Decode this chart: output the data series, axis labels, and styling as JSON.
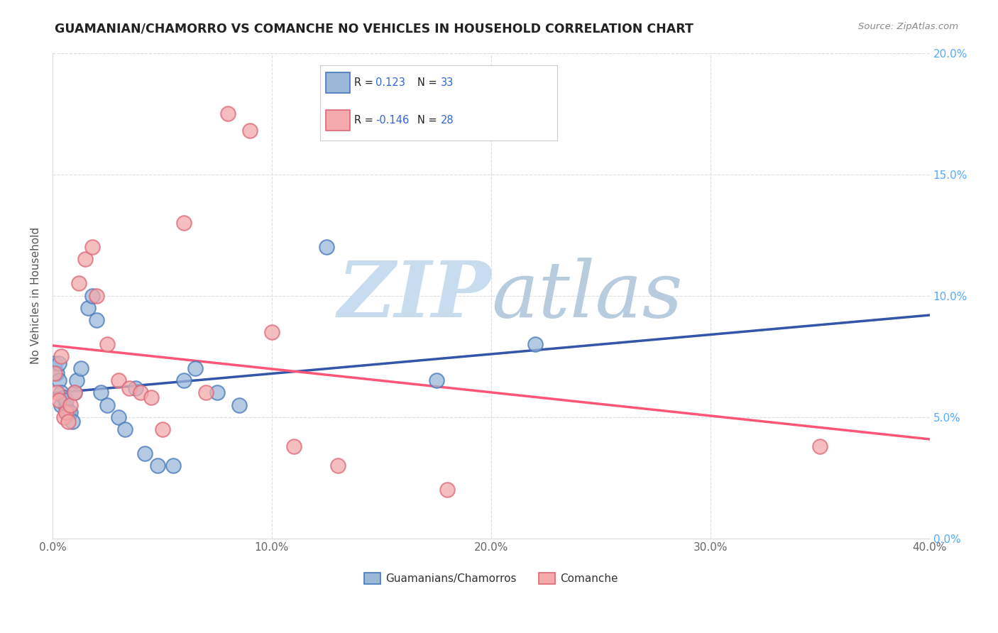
{
  "title": "GUAMANIAN/CHAMORRO VS COMANCHE NO VEHICLES IN HOUSEHOLD CORRELATION CHART",
  "source": "Source: ZipAtlas.com",
  "ylabel": "No Vehicles in Household",
  "xlim": [
    0.0,
    0.4
  ],
  "ylim": [
    0.0,
    0.2
  ],
  "xtick_vals": [
    0.0,
    0.1,
    0.2,
    0.3,
    0.4
  ],
  "ytick_vals": [
    0.0,
    0.05,
    0.1,
    0.15,
    0.2
  ],
  "legend_label1": "Guamanians/Chamorros",
  "legend_label2": "Comanche",
  "r1": 0.123,
  "n1": 33,
  "r2": -0.146,
  "n2": 28,
  "blue_face_color": "#9BB8D9",
  "blue_edge_color": "#4477BB",
  "pink_face_color": "#F4AAAA",
  "pink_edge_color": "#DD6677",
  "blue_line_color": "#3355AA",
  "pink_line_color": "#FF5577",
  "right_tick_color": "#55AAFF",
  "grid_color": "#DDDDDD",
  "background_color": "#FFFFFF",
  "blue_scatter_x": [
    0.001,
    0.002,
    0.003,
    0.003,
    0.004,
    0.004,
    0.005,
    0.006,
    0.006,
    0.007,
    0.008,
    0.009,
    0.01,
    0.011,
    0.013,
    0.016,
    0.018,
    0.02,
    0.022,
    0.025,
    0.03,
    0.033,
    0.038,
    0.042,
    0.048,
    0.055,
    0.06,
    0.065,
    0.075,
    0.085,
    0.125,
    0.175,
    0.22
  ],
  "blue_scatter_y": [
    0.072,
    0.068,
    0.072,
    0.065,
    0.06,
    0.055,
    0.058,
    0.054,
    0.057,
    0.052,
    0.052,
    0.048,
    0.06,
    0.065,
    0.07,
    0.095,
    0.1,
    0.09,
    0.06,
    0.055,
    0.05,
    0.045,
    0.062,
    0.035,
    0.03,
    0.03,
    0.065,
    0.07,
    0.06,
    0.055,
    0.12,
    0.065,
    0.08
  ],
  "pink_scatter_x": [
    0.001,
    0.002,
    0.003,
    0.004,
    0.005,
    0.006,
    0.007,
    0.008,
    0.01,
    0.012,
    0.015,
    0.018,
    0.02,
    0.025,
    0.03,
    0.035,
    0.04,
    0.045,
    0.05,
    0.06,
    0.07,
    0.08,
    0.09,
    0.1,
    0.11,
    0.13,
    0.18,
    0.35
  ],
  "pink_scatter_y": [
    0.068,
    0.06,
    0.057,
    0.075,
    0.05,
    0.052,
    0.048,
    0.055,
    0.06,
    0.105,
    0.115,
    0.12,
    0.1,
    0.08,
    0.065,
    0.062,
    0.06,
    0.058,
    0.045,
    0.13,
    0.06,
    0.175,
    0.168,
    0.085,
    0.038,
    0.03,
    0.02,
    0.038
  ]
}
